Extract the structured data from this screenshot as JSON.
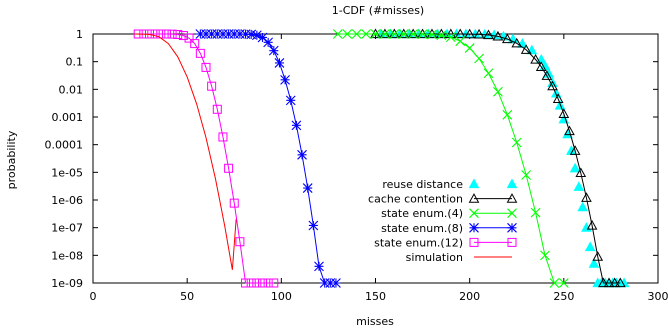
{
  "chart_data": {
    "type": "line",
    "title": "1-CDF (#misses)",
    "xlabel": "misses",
    "ylabel": "probability",
    "xscale": "linear",
    "yscale": "log",
    "xlim": [
      0,
      300
    ],
    "ylim": [
      1e-09,
      1
    ],
    "x_ticks": [
      "0",
      "50",
      "100",
      "150",
      "200",
      "250",
      "300"
    ],
    "y_ticks": [
      "1",
      "0.1",
      "0.01",
      "0.001",
      "0.0001",
      "1e-05",
      "1e-06",
      "1e-07",
      "1e-08",
      "1e-09"
    ],
    "grid": false,
    "legend_position": "right",
    "series": [
      {
        "name": "reuse distance",
        "color": "#00ffff",
        "marker": "filled-triangle",
        "line": false,
        "x": [
          153,
          158,
          163,
          168,
          173,
          178,
          183,
          188,
          193,
          198,
          203,
          208,
          213,
          218,
          223,
          228,
          233,
          238,
          240,
          242,
          244,
          246,
          248,
          250,
          252,
          254,
          256,
          258,
          260,
          262,
          264,
          266,
          268,
          270,
          272,
          274,
          276,
          278,
          280,
          282
        ],
        "y": [
          1,
          1,
          1,
          1,
          1,
          1,
          1,
          1,
          1,
          1,
          0.99,
          0.97,
          0.92,
          0.82,
          0.65,
          0.45,
          0.26,
          0.12,
          0.07,
          0.037,
          0.017,
          0.0071,
          0.0026,
          0.00083,
          0.00024,
          6e-05,
          1.4e-05,
          3e-06,
          5.5e-07,
          1e-07,
          2e-08,
          5e-09,
          1e-09,
          1e-09,
          1e-09,
          1e-09,
          1e-09,
          1e-09,
          1e-09,
          1e-09
        ]
      },
      {
        "name": "cache contention",
        "color": "#000000",
        "marker": "open-triangle",
        "line": true,
        "x": [
          150,
          155,
          160,
          165,
          170,
          175,
          180,
          185,
          190,
          195,
          200,
          205,
          210,
          215,
          220,
          225,
          230,
          235,
          238,
          241,
          244,
          247,
          250,
          253,
          256,
          259,
          262,
          265,
          268,
          271,
          274,
          277,
          280
        ],
        "y": [
          1,
          1,
          1,
          1,
          1,
          1,
          1,
          1,
          1,
          1,
          0.99,
          0.97,
          0.92,
          0.82,
          0.66,
          0.46,
          0.27,
          0.12,
          0.065,
          0.031,
          0.013,
          0.0045,
          0.0013,
          0.00031,
          6e-05,
          9.5e-06,
          1.2e-06,
          1.2e-07,
          9e-09,
          1e-09,
          1e-09,
          1e-09,
          1e-09
        ]
      },
      {
        "name": "state enum.(4)",
        "color": "#00ff00",
        "marker": "x",
        "line": true,
        "x": [
          130,
          135,
          140,
          145,
          150,
          155,
          160,
          165,
          170,
          175,
          180,
          185,
          190,
          195,
          200,
          205,
          210,
          215,
          220,
          225,
          230,
          235,
          240,
          245,
          250
        ],
        "y": [
          1,
          1,
          1,
          1,
          1,
          1,
          1,
          1,
          1,
          0.99,
          0.96,
          0.9,
          0.76,
          0.55,
          0.31,
          0.13,
          0.038,
          0.0082,
          0.0012,
          0.00012,
          8e-06,
          3.5e-07,
          1e-08,
          1e-09,
          1e-09
        ]
      },
      {
        "name": "state enum.(8)",
        "color": "#0000ff",
        "marker": "asterisk",
        "line": true,
        "x": [
          57,
          60,
          63,
          66,
          69,
          72,
          75,
          78,
          81,
          84,
          87,
          90,
          93,
          96,
          99,
          102,
          105,
          108,
          111,
          114,
          117,
          120,
          123,
          126,
          129
        ],
        "y": [
          1,
          1,
          1,
          1,
          1,
          1,
          1,
          1,
          0.99,
          0.97,
          0.9,
          0.75,
          0.5,
          0.25,
          0.09,
          0.022,
          0.004,
          0.0005,
          4.3e-05,
          2.7e-06,
          1.2e-07,
          4e-09,
          1e-09,
          1e-09,
          1e-09
        ]
      },
      {
        "name": "state enum.(12)",
        "color": "#ff00ff",
        "marker": "open-square",
        "line": true,
        "x": [
          24,
          27,
          30,
          33,
          36,
          39,
          42,
          45,
          48,
          51,
          54,
          57,
          60,
          63,
          66,
          69,
          72,
          75,
          78,
          81,
          84,
          87,
          90,
          93,
          96
        ],
        "y": [
          1,
          1,
          1,
          1,
          1,
          1,
          0.99,
          0.96,
          0.88,
          0.71,
          0.45,
          0.2,
          0.062,
          0.013,
          0.0019,
          0.00019,
          1.4e-05,
          7.7e-07,
          3.1e-08,
          1e-09,
          1e-09,
          1e-09,
          1e-09,
          1e-09,
          1e-09
        ]
      },
      {
        "name": "simulation",
        "color": "#ff0000",
        "marker": "none",
        "line": true,
        "x": [
          22,
          30,
          35,
          40,
          45,
          50,
          55,
          60,
          65,
          70,
          72,
          74,
          76
        ],
        "y": [
          1,
          0.97,
          0.8,
          0.45,
          0.15,
          0.028,
          0.003,
          0.00018,
          6e-06,
          1.1e-07,
          1.8e-08,
          3e-09,
          2e-07
        ]
      }
    ]
  }
}
